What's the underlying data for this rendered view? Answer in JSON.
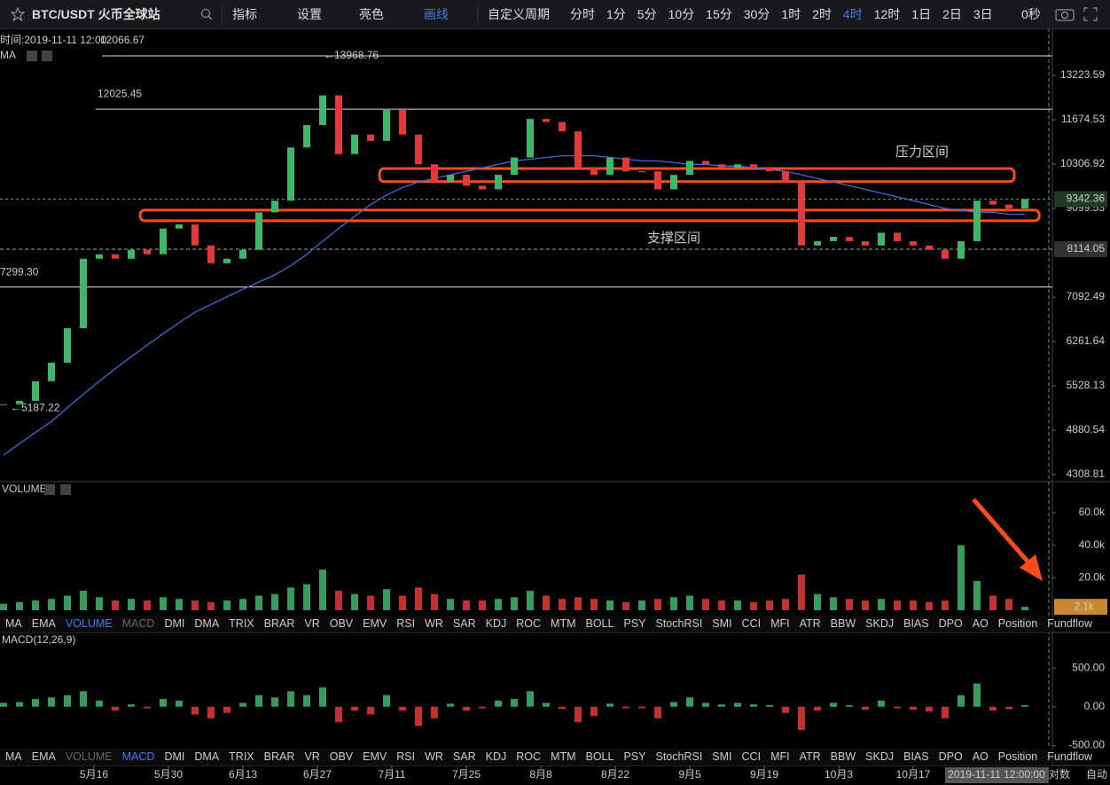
{
  "toolbar": {
    "symbol": "BTC/USDT 火币全球站",
    "tools": [
      "指标",
      "设置",
      "亮色",
      "画线"
    ],
    "active_tool": 3,
    "period_menu": "自定义周期",
    "periods": [
      "分时",
      "1分",
      "5分",
      "10分",
      "15分",
      "30分",
      "1时",
      "2时",
      "4时",
      "12时",
      "1日",
      "2日",
      "3日"
    ],
    "active_period": 8,
    "timer": "0秒"
  },
  "header": {
    "time": "时间:2019-11-11 12:00",
    "value": "12066.67"
  },
  "crosshair_time": "2019-11-11 12:00:00",
  "axis_buttons": [
    "对数",
    "自动"
  ],
  "indicator_tabs": [
    "MA",
    "EMA",
    "VOLUME",
    "MACD",
    "DMI",
    "DMA",
    "TRIX",
    "BRAR",
    "VR",
    "OBV",
    "EMV",
    "RSI",
    "WR",
    "SAR",
    "KDJ",
    "ROC",
    "MTM",
    "BOLL",
    "PSY",
    "StochRSI",
    "SMI",
    "CCI",
    "MFI",
    "ATR",
    "BBW",
    "SKDJ",
    "BIAS",
    "DPO",
    "AO",
    "Position",
    "Fundflow"
  ],
  "volume_tab_active": 2,
  "macd_tab_active": 3,
  "chart_data": [
    {
      "type": "candlestick",
      "pane_label": "MA",
      "colors": {
        "up": "#3fb76a",
        "down": "#e23a3a"
      },
      "x": [
        0,
        3,
        6,
        9,
        12,
        15,
        18,
        21,
        24,
        27,
        30,
        33,
        36,
        39,
        42,
        45,
        48,
        51,
        54,
        57,
        60,
        63,
        66,
        69,
        72,
        75,
        78,
        81,
        84,
        87,
        90,
        93,
        96,
        99,
        102,
        105,
        108,
        111,
        114,
        117,
        120,
        123,
        126,
        129,
        132,
        135,
        138,
        141,
        144,
        147,
        150,
        153,
        156,
        159,
        162,
        165,
        168,
        171,
        174,
        177,
        180,
        183,
        186,
        189,
        192
      ],
      "xlim": [
        -0.67,
        197.17
      ],
      "xticks": [
        {
          "value": 17,
          "label": "5月16"
        },
        {
          "value": 31,
          "label": "5月30"
        },
        {
          "value": 45,
          "label": "6月13"
        },
        {
          "value": 59,
          "label": "6月27"
        },
        {
          "value": 73,
          "label": "7月11"
        },
        {
          "value": 87,
          "label": "7月25"
        },
        {
          "value": 101,
          "label": "8月8"
        },
        {
          "value": 115,
          "label": "8月22"
        },
        {
          "value": 129,
          "label": "9月5"
        },
        {
          "value": 143,
          "label": "9月19"
        },
        {
          "value": 157,
          "label": "10月3"
        },
        {
          "value": 171,
          "label": "10月17"
        }
      ],
      "ylim": [
        4224,
        15090
      ],
      "log": true,
      "yticks": [
        13223.59,
        11674.53,
        10306.92,
        9099.53,
        7092.49,
        6261.64,
        5528.13,
        4880.54,
        4308.81
      ],
      "close": [
        5250,
        5300,
        5600,
        5900,
        6500,
        7900,
        8000,
        7900,
        8100,
        8000,
        8600,
        8700,
        8200,
        7800,
        7900,
        8100,
        9000,
        9300,
        10800,
        11500,
        12500,
        10600,
        11200,
        11000,
        12000,
        11200,
        10300,
        9800,
        10000,
        9700,
        9600,
        10000,
        10500,
        11700,
        11600,
        11300,
        10200,
        10000,
        10500,
        10100,
        10100,
        9600,
        10000,
        10400,
        10300,
        10200,
        10300,
        10200,
        10100,
        9800,
        8200,
        8300,
        8400,
        8300,
        8200,
        8500,
        8300,
        8200,
        8100,
        7900,
        8300,
        9300,
        9200,
        9100,
        9342.36
      ],
      "ma": {
        "color": "#3d6bd8",
        "values": [
          4550,
          4700,
          4850,
          5000,
          5200,
          5400,
          5600,
          5800,
          6000,
          6200,
          6400,
          6600,
          6800,
          6950,
          7100,
          7250,
          7400,
          7550,
          7750,
          8000,
          8300,
          8600,
          8900,
          9200,
          9450,
          9650,
          9800,
          9900,
          10000,
          10100,
          10200,
          10300,
          10400,
          10450,
          10500,
          10550,
          10550,
          10550,
          10500,
          10450,
          10400,
          10400,
          10350,
          10300,
          10300,
          10250,
          10250,
          10200,
          10150,
          10100,
          10000,
          9900,
          9800,
          9700,
          9600,
          9500,
          9400,
          9300,
          9200,
          9100,
          9050,
          9000,
          9000,
          8950,
          8950
        ]
      },
      "price_lines": [
        {
          "value": 13968.76,
          "label": "←13968.76"
        },
        {
          "value": 12025.45,
          "label": "12025.45"
        },
        {
          "value": 7299.3,
          "label": "7299.30"
        },
        {
          "value": 5187.22,
          "label": "←5187.22"
        }
      ],
      "last_price": 9342.36,
      "ref_level": 8114.05,
      "zones": [
        {
          "label": "压力区间",
          "low": 9811,
          "high": 10178,
          "from": 70.7,
          "to": 190
        },
        {
          "label": "支撑区间",
          "low": 8791,
          "high": 9058,
          "from": 25.7,
          "to": 194.7
        }
      ]
    },
    {
      "type": "bar",
      "pane_label": "VOLUME",
      "values": [
        4000,
        5000,
        6000,
        7000,
        9000,
        12000,
        8000,
        6000,
        7000,
        6000,
        8000,
        7000,
        6000,
        5000,
        6000,
        7000,
        9000,
        10000,
        14000,
        16000,
        25000,
        12000,
        10000,
        9000,
        13000,
        9000,
        14000,
        10000,
        7000,
        6000,
        6000,
        7000,
        8000,
        12000,
        9000,
        7000,
        8000,
        7000,
        6000,
        5000,
        6000,
        7000,
        8000,
        9000,
        7000,
        6000,
        6000,
        5000,
        6000,
        7000,
        22000,
        10000,
        8000,
        7000,
        6000,
        7000,
        6000,
        6000,
        5000,
        6000,
        40000,
        18000,
        9000,
        7000,
        2100
      ],
      "ylim": [
        0,
        78000
      ],
      "yticks": [
        {
          "value": 20000,
          "label": "20.0k"
        },
        {
          "value": 40000,
          "label": "40.0k"
        },
        {
          "value": 60000,
          "label": "60.0k"
        }
      ],
      "last": {
        "value": 2100,
        "label": "2.1k"
      }
    },
    {
      "type": "bar",
      "pane_label": "MACD(12,26,9)",
      "values": [
        50,
        60,
        100,
        120,
        150,
        200,
        80,
        -50,
        30,
        -20,
        100,
        80,
        -100,
        -150,
        -80,
        50,
        150,
        120,
        200,
        150,
        250,
        -200,
        -50,
        -100,
        150,
        -50,
        -250,
        -150,
        40,
        -50,
        -20,
        80,
        100,
        200,
        50,
        -30,
        -200,
        -120,
        40,
        -20,
        -20,
        -150,
        60,
        120,
        50,
        30,
        50,
        30,
        20,
        -80,
        -300,
        -50,
        50,
        20,
        -40,
        80,
        -20,
        -40,
        -60,
        -150,
        150,
        300,
        -50,
        -30,
        20
      ],
      "ylim": [
        -530,
        960
      ],
      "yticks": [
        {
          "value": 500,
          "label": "500.00"
        },
        {
          "value": 0,
          "label": "0.00"
        },
        {
          "value": -500,
          "label": "-500.00"
        }
      ]
    }
  ]
}
